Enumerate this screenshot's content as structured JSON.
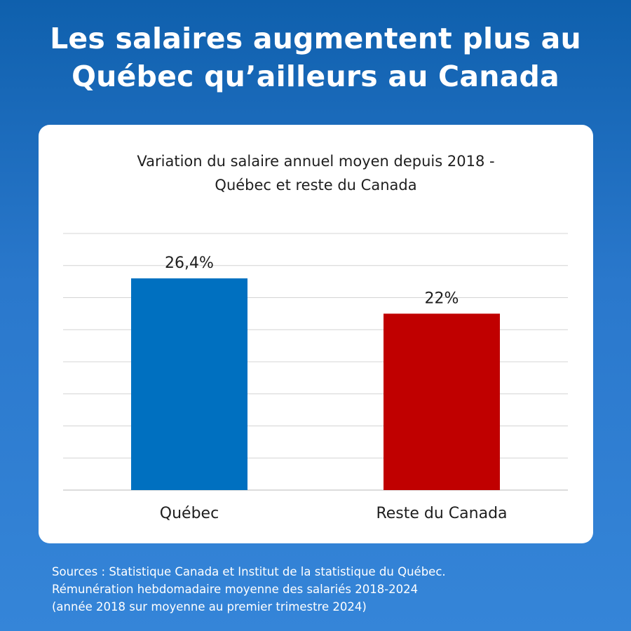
{
  "headline": {
    "line1": "Les salaires augmentent plus au",
    "line2": "Québec qu’ailleurs au Canada"
  },
  "chart_data": {
    "type": "bar",
    "title_lines": [
      "Variation du salaire annuel moyen depuis 2018 -",
      "Québec et reste du Canada"
    ],
    "categories": [
      "Québec",
      "Reste du Canada"
    ],
    "values": [
      26.4,
      22
    ],
    "value_labels": [
      "26,4%",
      "22%"
    ],
    "colors": [
      "#0070c0",
      "#c00000"
    ],
    "ylim": [
      0,
      32
    ],
    "grid": true,
    "axis_tick_labels_shown": false,
    "legend": "none"
  },
  "sources": {
    "line1": "Sources : Statistique Canada et Institut de la statistique du Québec.",
    "line2": "Rémunération hebdomadaire moyenne des salariés 2018-2024",
    "line3": "(année 2018 sur moyenne au premier trimestre 2024)"
  }
}
